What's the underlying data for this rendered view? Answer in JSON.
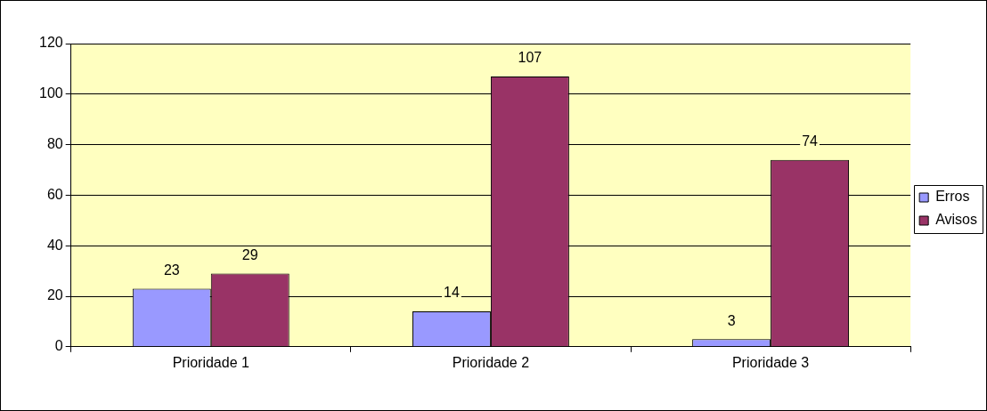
{
  "chart_data": {
    "type": "bar",
    "categories": [
      "Prioridade 1",
      "Prioridade 2",
      "Prioridade 3"
    ],
    "series": [
      {
        "name": "Erros",
        "color": "#9999ff",
        "values": [
          23,
          14,
          3
        ]
      },
      {
        "name": "Avisos",
        "color": "#993366",
        "values": [
          29,
          107,
          74
        ]
      }
    ],
    "ylim": [
      0,
      120
    ],
    "yticks": [
      0,
      20,
      40,
      60,
      80,
      100,
      120
    ],
    "grid": "y",
    "legend": "right",
    "data_labels": true
  }
}
